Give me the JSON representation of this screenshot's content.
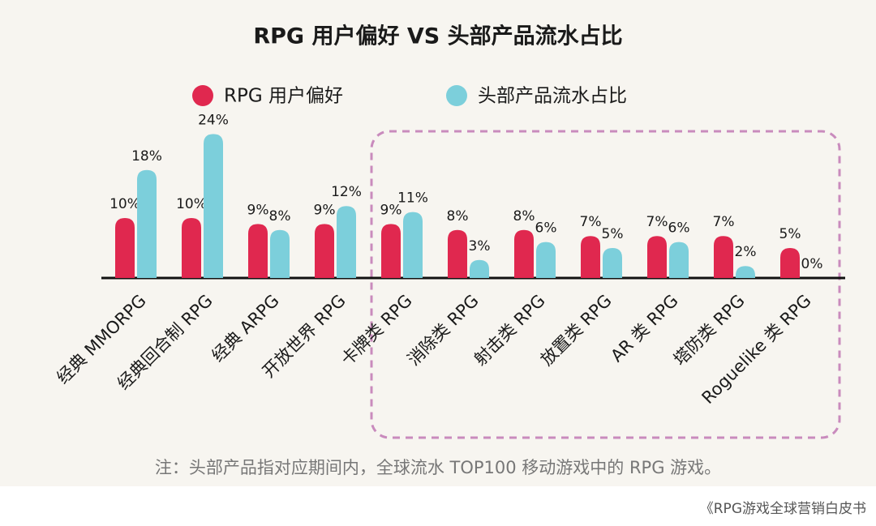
{
  "chart_data": {
    "type": "bar",
    "title": "RPG 用户偏好 VS 头部产品流水占比",
    "categories": [
      "经典 MMORPG",
      "经典回合制 RPG",
      "经典 ARPG",
      "开放世界 RPG",
      "卡牌类 RPG",
      "消除类 RPG",
      "射击类 RPG",
      "放置类 RPG",
      "AR 类 RPG",
      "塔防类 RPG",
      "Roguelike 类 RPG"
    ],
    "series": [
      {
        "name": "RPG 用户偏好",
        "color": "#e0284f",
        "values": [
          10,
          10,
          9,
          9,
          9,
          8,
          8,
          7,
          7,
          7,
          5
        ],
        "value_labels": [
          "10%",
          "10%",
          "9%",
          "9%",
          "9%",
          "8%",
          "8%",
          "7%",
          "7%",
          "7%",
          "5%"
        ]
      },
      {
        "name": "头部产品流水占比",
        "color": "#7ccfdb",
        "values": [
          18,
          24,
          8,
          12,
          11,
          3,
          6,
          5,
          6,
          2,
          0
        ],
        "value_labels": [
          "18%",
          "24%",
          "8%",
          "12%",
          "11%",
          "3%",
          "6%",
          "5%",
          "6%",
          "2%",
          "0%"
        ]
      }
    ],
    "legend": "top",
    "note": "注：头部产品指对应期间内，全球流水 TOP100 移动游戏中的 RPG 游戏。",
    "source": "《RPG游戏全球营销白皮书"
  }
}
